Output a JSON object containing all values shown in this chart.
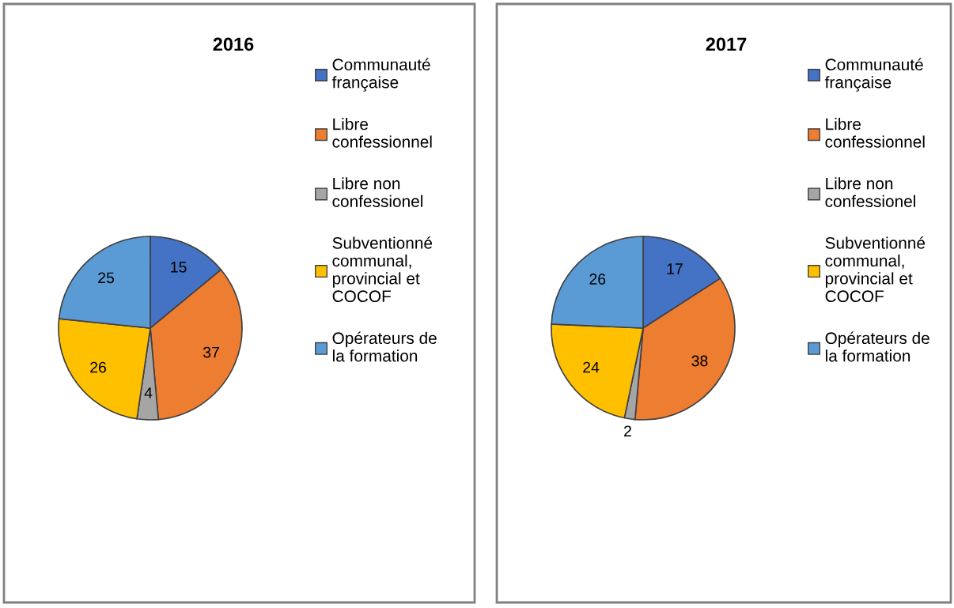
{
  "chart_data": [
    {
      "type": "pie",
      "title": "2016",
      "categories": [
        "Communauté\nfrançaise",
        "Libre\nconfessionnel",
        "Libre non\nconfessionel",
        "Subventionné\ncommunal,\nprovincial et\nCOCOF",
        "Opérateurs de\nla formation"
      ],
      "values": [
        15,
        37,
        4,
        26,
        25
      ],
      "colors": [
        "#4472c4",
        "#ed7d31",
        "#a5a5a5",
        "#ffc000",
        "#5b9bd5"
      ],
      "data_labels": true,
      "legend": "right"
    },
    {
      "type": "pie",
      "title": "2017",
      "categories": [
        "Communauté\nfrançaise",
        "Libre\nconfessionnel",
        "Libre non\nconfessionel",
        "Subventionné\ncommunal,\nprovincial et\nCOCOF",
        "Opérateurs de\nla formation"
      ],
      "values": [
        17,
        38,
        2,
        24,
        26
      ],
      "colors": [
        "#4472c4",
        "#ed7d31",
        "#a5a5a5",
        "#ffc000",
        "#5b9bd5"
      ],
      "data_labels": true,
      "legend": "right"
    }
  ]
}
